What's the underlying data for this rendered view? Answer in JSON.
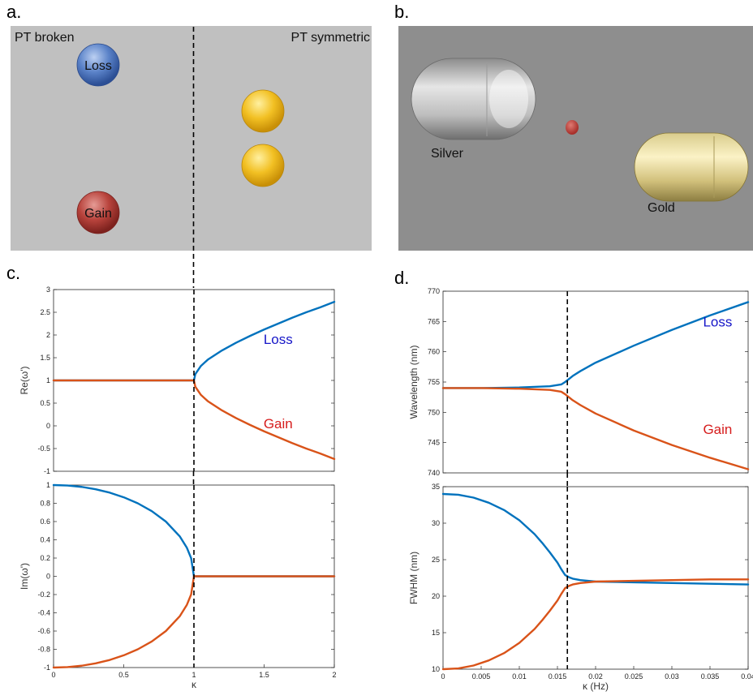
{
  "panels": {
    "a": {
      "label": "a.",
      "left_text": "PT broken",
      "right_text": "PT symmetric",
      "loss_label": "Loss",
      "gain_label": "Gain"
    },
    "b": {
      "label": "b.",
      "silver_label": "Silver",
      "gold_label": "Gold"
    },
    "c": {
      "label": "c."
    },
    "d": {
      "label": "d."
    }
  },
  "colors": {
    "blue_curve": "#0072bd",
    "orange_curve": "#d95319",
    "loss_text": "#1616c8",
    "gain_text": "#d61c1c",
    "scene_a_bg": "#c0c0c0",
    "scene_b_bg": "#8e8e8e"
  },
  "chart_data": [
    {
      "id": "c-top",
      "type": "line",
      "xlabel": "",
      "ylabel": "Re(ω')",
      "xlim": [
        0,
        2
      ],
      "ylim": [
        -1,
        3
      ],
      "xticks": [],
      "yticks": [
        -1,
        -0.5,
        0,
        0.5,
        1,
        1.5,
        2,
        2.5,
        3
      ],
      "ytick_labels": [
        "-1",
        "-0.5",
        "0",
        "0.5",
        "1",
        "1.5",
        "2",
        "2.5",
        "3"
      ],
      "vline_x": 1,
      "annotations": [
        {
          "text": "Loss",
          "x": 1.6,
          "y": 1.8,
          "color": "blue"
        },
        {
          "text": "Gain",
          "x": 1.6,
          "y": -0.05,
          "color": "red"
        }
      ],
      "series": [
        {
          "color": "blue",
          "x": [
            0,
            0.5,
            1,
            1.01,
            1.05,
            1.1,
            1.2,
            1.3,
            1.4,
            1.5,
            1.6,
            1.7,
            1.8,
            1.9,
            2.0
          ],
          "y": [
            1,
            1,
            1,
            1.14,
            1.32,
            1.46,
            1.66,
            1.83,
            1.98,
            2.12,
            2.25,
            2.38,
            2.5,
            2.61,
            2.73
          ]
        },
        {
          "color": "orange",
          "x": [
            0,
            0.5,
            1,
            1.01,
            1.05,
            1.1,
            1.2,
            1.3,
            1.4,
            1.5,
            1.6,
            1.7,
            1.8,
            1.9,
            2.0
          ],
          "y": [
            1,
            1,
            1,
            0.86,
            0.68,
            0.54,
            0.34,
            0.17,
            0.02,
            -0.12,
            -0.25,
            -0.38,
            -0.5,
            -0.61,
            -0.73
          ]
        }
      ]
    },
    {
      "id": "c-bottom",
      "type": "line",
      "xlabel": "κ",
      "ylabel": "Im(ω')",
      "xlim": [
        0,
        2
      ],
      "ylim": [
        -1,
        1
      ],
      "xticks": [
        0,
        0.5,
        1,
        1.5,
        2
      ],
      "xtick_labels": [
        "0",
        "0.5",
        "1",
        "1.5",
        "2"
      ],
      "yticks": [
        -1,
        -0.8,
        -0.6,
        -0.4,
        -0.2,
        0,
        0.2,
        0.4,
        0.6,
        0.8,
        1
      ],
      "ytick_labels": [
        "-1",
        "-0.8",
        "-0.6",
        "-0.4",
        "-0.2",
        "0",
        "0.2",
        "0.4",
        "0.6",
        "0.8",
        "1"
      ],
      "vline_x": 1,
      "annotations": [],
      "series": [
        {
          "color": "blue",
          "x": [
            0,
            0.1,
            0.2,
            0.3,
            0.4,
            0.5,
            0.6,
            0.7,
            0.8,
            0.9,
            0.95,
            0.98,
            1.0,
            1.5,
            2.0
          ],
          "y": [
            1,
            0.995,
            0.98,
            0.954,
            0.917,
            0.866,
            0.8,
            0.714,
            0.6,
            0.436,
            0.312,
            0.199,
            0,
            0,
            0
          ]
        },
        {
          "color": "orange",
          "x": [
            0,
            0.1,
            0.2,
            0.3,
            0.4,
            0.5,
            0.6,
            0.7,
            0.8,
            0.9,
            0.95,
            0.98,
            1.0,
            1.5,
            2.0
          ],
          "y": [
            -1,
            -0.995,
            -0.98,
            -0.954,
            -0.917,
            -0.866,
            -0.8,
            -0.714,
            -0.6,
            -0.436,
            -0.312,
            -0.199,
            0,
            0,
            0
          ]
        }
      ]
    },
    {
      "id": "d-top",
      "type": "line",
      "xlabel": "",
      "ylabel": "Wavelength (nm)",
      "xlim": [
        0,
        0.04
      ],
      "ylim": [
        740,
        770
      ],
      "xticks": [],
      "yticks": [
        740,
        745,
        750,
        755,
        760,
        765,
        770
      ],
      "ytick_labels": [
        "740",
        "745",
        "750",
        "755",
        "760",
        "765",
        "770"
      ],
      "vline_x": 0.0163,
      "annotations": [
        {
          "text": "Loss",
          "x": 0.036,
          "y": 764.2,
          "color": "blue"
        },
        {
          "text": "Gain",
          "x": 0.036,
          "y": 746.4,
          "color": "red"
        }
      ],
      "series": [
        {
          "color": "blue",
          "x": [
            0,
            0.005,
            0.01,
            0.014,
            0.0155,
            0.016,
            0.0165,
            0.017,
            0.018,
            0.02,
            0.025,
            0.03,
            0.035,
            0.04
          ],
          "y": [
            754.0,
            754.0,
            754.1,
            754.3,
            754.6,
            755.0,
            755.5,
            756.0,
            756.8,
            758.2,
            761.0,
            763.6,
            766.0,
            768.2
          ]
        },
        {
          "color": "orange",
          "x": [
            0,
            0.005,
            0.01,
            0.014,
            0.0155,
            0.016,
            0.0165,
            0.017,
            0.018,
            0.02,
            0.025,
            0.03,
            0.035,
            0.04
          ],
          "y": [
            754.0,
            754.0,
            753.9,
            753.7,
            753.4,
            753.0,
            752.5,
            752.0,
            751.2,
            749.8,
            747.0,
            744.6,
            742.5,
            740.6
          ]
        }
      ]
    },
    {
      "id": "d-bottom",
      "type": "line",
      "xlabel": "κ (Hz)",
      "ylabel": "FWHM (nm)",
      "xlim": [
        0,
        0.04
      ],
      "ylim": [
        10,
        35
      ],
      "xticks": [
        0,
        0.005,
        0.01,
        0.015,
        0.02,
        0.025,
        0.03,
        0.035,
        0.04
      ],
      "xtick_labels": [
        "0",
        "0.005",
        "0.01",
        "0.015",
        "0.02",
        "0.025",
        "0.03",
        "0.035",
        "0.04"
      ],
      "yticks": [
        10,
        15,
        20,
        25,
        30,
        35
      ],
      "ytick_labels": [
        "10",
        "15",
        "20",
        "25",
        "30",
        "35"
      ],
      "vline_x": 0.0163,
      "annotations": [],
      "series": [
        {
          "color": "blue",
          "x": [
            0,
            0.002,
            0.004,
            0.006,
            0.008,
            0.01,
            0.012,
            0.013,
            0.014,
            0.015,
            0.0155,
            0.016,
            0.0165,
            0.017,
            0.018,
            0.02,
            0.025,
            0.03,
            0.035,
            0.04
          ],
          "y": [
            34.0,
            33.9,
            33.5,
            32.8,
            31.8,
            30.4,
            28.5,
            27.3,
            26.0,
            24.6,
            23.7,
            22.9,
            22.6,
            22.4,
            22.2,
            22.0,
            21.9,
            21.8,
            21.7,
            21.6
          ]
        },
        {
          "color": "orange",
          "x": [
            0,
            0.002,
            0.004,
            0.006,
            0.008,
            0.01,
            0.012,
            0.013,
            0.014,
            0.015,
            0.0155,
            0.016,
            0.0165,
            0.017,
            0.018,
            0.02,
            0.025,
            0.03,
            0.035,
            0.04
          ],
          "y": [
            10.0,
            10.1,
            10.5,
            11.2,
            12.2,
            13.6,
            15.5,
            16.7,
            18.0,
            19.4,
            20.3,
            21.1,
            21.4,
            21.6,
            21.8,
            22.0,
            22.1,
            22.2,
            22.3,
            22.3
          ]
        }
      ]
    }
  ]
}
